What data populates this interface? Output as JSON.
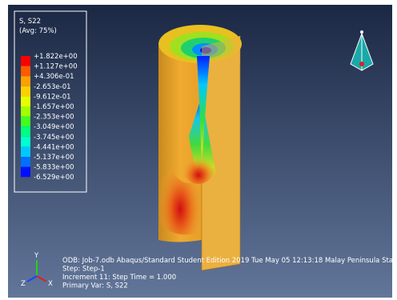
{
  "legend": {
    "title": "S, S22",
    "subtitle": "(Avg: 75%)",
    "labels": [
      "+1.822e+00",
      "+1.127e+00",
      "+4.306e-01",
      "-2.653e-01",
      "-9.612e-01",
      "-1.657e+00",
      "-2.353e+00",
      "-3.049e+00",
      "-3.745e+00",
      "-4.441e+00",
      "-5.137e+00",
      "-5.833e+00",
      "-6.529e+00"
    ],
    "colors": [
      "#ff0000",
      "#ff5a00",
      "#ffa000",
      "#ffd000",
      "#e8ff00",
      "#a0ff00",
      "#40ff20",
      "#00ff80",
      "#00ffd0",
      "#00c8ff",
      "#0070ff",
      "#0010ff"
    ]
  },
  "info": [
    "ODB: Job-7.odb    Abaqus/Standard Student Edition 2019    Tue May 05 12:13:18 Malay Peninsula Sta",
    "Step: Step-1",
    "Increment     11: Step Time =    1.000",
    "Primary Var: S, S22"
  ],
  "triad": {
    "y": "Y",
    "z": "Z",
    "x": "X"
  }
}
